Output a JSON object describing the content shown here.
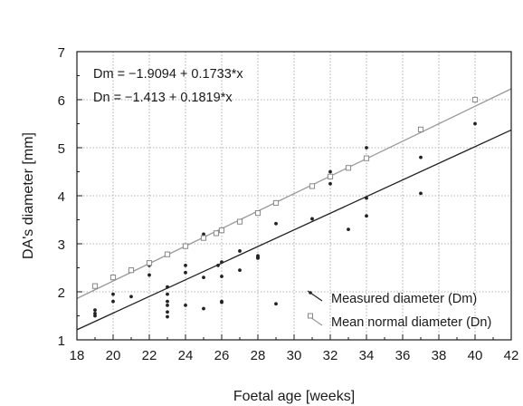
{
  "chart_data": {
    "type": "scatter",
    "xlabel": "Foetal age [weeks]",
    "ylabel": "DA's diameter [mm]",
    "xlim": [
      18,
      42
    ],
    "ylim": [
      1,
      7
    ],
    "xticks": [
      18,
      20,
      22,
      24,
      26,
      28,
      30,
      32,
      34,
      36,
      38,
      40,
      42
    ],
    "yticks": [
      1,
      2,
      3,
      4,
      5,
      6,
      7
    ],
    "grid": true,
    "legend_position": "bottom-right",
    "annotations": [
      "Dm = −1.9094 + 0.1733*x",
      "Dn = −1.413 + 0.1819*x"
    ],
    "series": [
      {
        "name": "Measured diameter (Dm)",
        "color": "#222222",
        "marker": "dot",
        "fit": {
          "intercept": -1.9094,
          "slope": 0.1733
        },
        "points": [
          [
            19,
            1.62
          ],
          [
            19,
            1.55
          ],
          [
            19,
            1.5
          ],
          [
            20,
            1.95
          ],
          [
            20,
            1.8
          ],
          [
            21,
            1.9
          ],
          [
            22,
            2.55
          ],
          [
            22,
            2.35
          ],
          [
            23,
            2.1
          ],
          [
            23,
            1.95
          ],
          [
            23,
            1.8
          ],
          [
            23,
            1.72
          ],
          [
            23,
            1.58
          ],
          [
            23,
            1.48
          ],
          [
            24,
            2.55
          ],
          [
            24,
            2.4
          ],
          [
            24,
            1.72
          ],
          [
            25,
            3.2
          ],
          [
            25,
            2.3
          ],
          [
            25,
            1.65
          ],
          [
            25.8,
            2.55
          ],
          [
            26,
            2.62
          ],
          [
            26,
            2.32
          ],
          [
            26,
            1.8
          ],
          [
            26,
            1.78
          ],
          [
            27,
            2.85
          ],
          [
            27,
            2.45
          ],
          [
            28,
            2.75
          ],
          [
            28,
            2.72
          ],
          [
            28,
            2.7
          ],
          [
            29,
            3.42
          ],
          [
            29,
            1.75
          ],
          [
            31,
            3.52
          ],
          [
            32,
            4.5
          ],
          [
            32,
            4.42
          ],
          [
            32,
            4.25
          ],
          [
            33,
            3.3
          ],
          [
            34,
            5.0
          ],
          [
            34,
            3.95
          ],
          [
            34,
            3.58
          ],
          [
            37,
            4.8
          ],
          [
            37,
            4.05
          ],
          [
            40,
            5.5
          ]
        ]
      },
      {
        "name": "Mean normal diameter (Dn)",
        "color": "#999999",
        "marker": "square",
        "fit": {
          "intercept": -1.413,
          "slope": 0.1819
        },
        "points": [
          [
            19,
            2.12
          ],
          [
            20,
            2.3
          ],
          [
            21,
            2.45
          ],
          [
            22,
            2.6
          ],
          [
            23,
            2.78
          ],
          [
            24,
            2.95
          ],
          [
            25,
            3.12
          ],
          [
            25.7,
            3.22
          ],
          [
            26,
            3.28
          ],
          [
            27,
            3.46
          ],
          [
            28,
            3.64
          ],
          [
            29,
            3.85
          ],
          [
            31,
            4.2
          ],
          [
            32,
            4.4
          ],
          [
            33,
            4.58
          ],
          [
            34,
            4.78
          ],
          [
            37,
            5.38
          ],
          [
            40,
            6.0
          ]
        ]
      }
    ]
  }
}
